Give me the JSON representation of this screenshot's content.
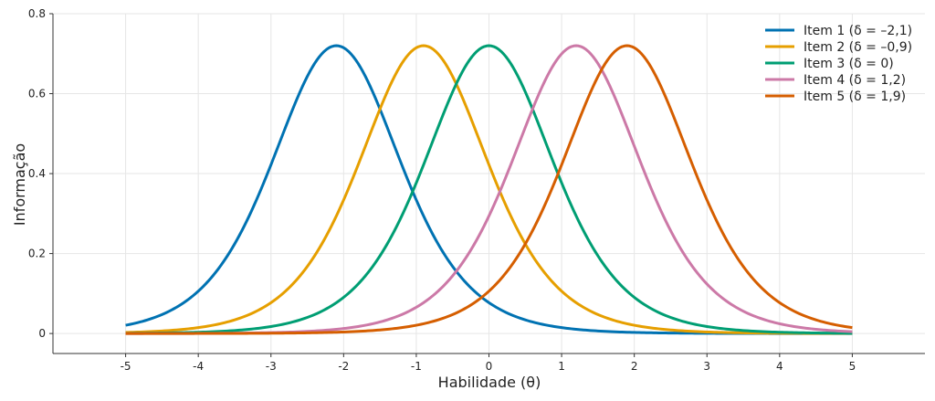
{
  "chart_data": {
    "type": "line",
    "title": "",
    "xlabel": "Habilidade (θ)",
    "ylabel": "Informação",
    "xlim": [
      -6,
      6
    ],
    "ylim": [
      -0.05,
      0.8
    ],
    "xticks": [
      -5,
      -4,
      -3,
      -2,
      -1,
      0,
      1,
      2,
      3,
      4,
      5
    ],
    "xtick_labels": [
      "-5",
      "-4",
      "-3",
      "-2",
      "-1",
      "0",
      "1",
      "2",
      "3",
      "4",
      "5"
    ],
    "yticks": [
      0,
      0.2,
      0.4,
      0.6,
      0.8
    ],
    "ytick_labels": [
      "0",
      "0.2",
      "0.4",
      "0.6",
      "0.8"
    ],
    "grid": true,
    "legend_position": "top-right",
    "x_range": [
      -5,
      5
    ],
    "series": [
      {
        "name": "Item 1 (δ = –2,1)",
        "delta": -2.1,
        "color": "#0072B2"
      },
      {
        "name": "Item 2 (δ = –0,9)",
        "delta": -0.9,
        "color": "#E69F00"
      },
      {
        "name": "Item 3 (δ = 0)",
        "delta": 0,
        "color": "#009E73"
      },
      {
        "name": "Item 4 (δ = 1,2)",
        "delta": 1.2,
        "color": "#CC79A7"
      },
      {
        "name": "Item 5 (δ = 1,9)",
        "delta": 1.9,
        "color": "#D55E00"
      }
    ],
    "peak_value": 0.72
  }
}
